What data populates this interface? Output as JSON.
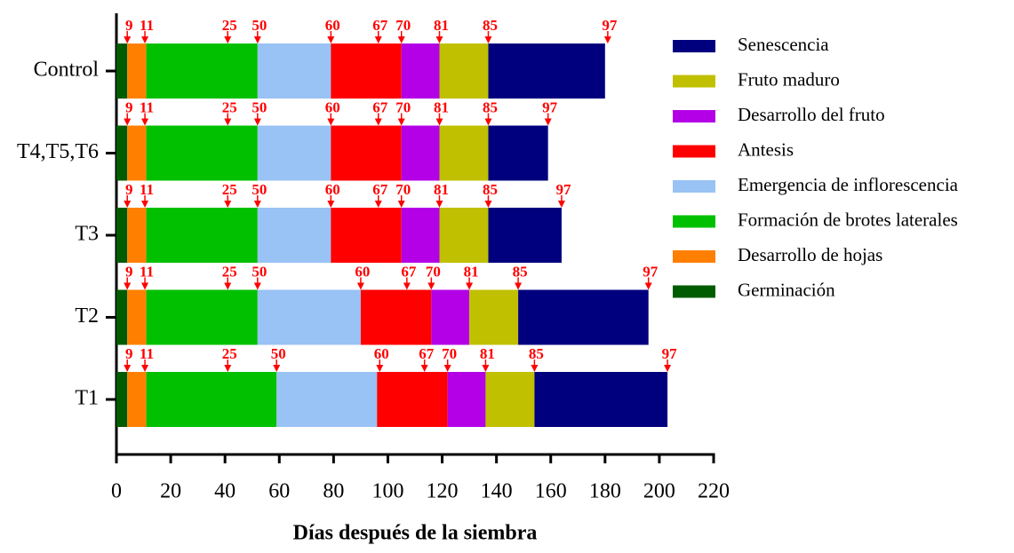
{
  "chart_data": {
    "type": "stacked-barh",
    "xlabel": "Días después de la siembra",
    "categories": [
      "Control",
      "T4,T5,T6",
      "T3",
      "T2",
      "T1"
    ],
    "series": [
      {
        "name": "Germinación",
        "color": "#005c00",
        "values": [
          4,
          4,
          4,
          4,
          4
        ]
      },
      {
        "name": "Desarrollo de hojas",
        "color": "#ff8000",
        "values": [
          7,
          7,
          7,
          7,
          7
        ]
      },
      {
        "name": "Formación de brotes laterales",
        "color": "#00c000",
        "values": [
          41,
          41,
          41,
          41,
          48
        ]
      },
      {
        "name": "Emergencia de inflorescencia",
        "color": "#99c2f5",
        "values": [
          27,
          27,
          27,
          38,
          37
        ]
      },
      {
        "name": "Antesis",
        "color": "#ff0000",
        "values": [
          26,
          26,
          26,
          26,
          26
        ]
      },
      {
        "name": "Desarrollo del fruto",
        "color": "#b300e6",
        "values": [
          14,
          14,
          14,
          14,
          14
        ]
      },
      {
        "name": "Fruto maduro",
        "color": "#c0c000",
        "values": [
          18,
          18,
          18,
          18,
          18
        ]
      },
      {
        "name": "Senescencia",
        "color": "#00007f",
        "values": [
          43,
          22,
          27,
          48,
          49
        ]
      }
    ],
    "bbch_codes": [
      9,
      11,
      25,
      50,
      60,
      67,
      70,
      81,
      85,
      97
    ],
    "marker_color": "#ff0000",
    "marker_positions": [
      [
        4,
        10.5,
        41,
        52,
        79,
        96.5,
        105,
        119,
        137,
        181
      ],
      [
        4,
        10.5,
        41,
        52,
        79,
        96.5,
        105,
        119,
        137,
        159
      ],
      [
        4,
        10.5,
        41,
        52,
        79,
        96.5,
        105,
        119,
        137,
        164
      ],
      [
        4,
        10.5,
        41,
        52,
        90,
        107,
        116,
        130,
        148,
        196
      ],
      [
        4,
        10.5,
        41,
        59,
        97,
        113.5,
        122,
        136,
        154,
        203
      ]
    ],
    "xlim": [
      0,
      220
    ],
    "xticks": [
      0,
      20,
      40,
      60,
      80,
      100,
      120,
      140,
      160,
      180,
      200,
      220
    ]
  }
}
